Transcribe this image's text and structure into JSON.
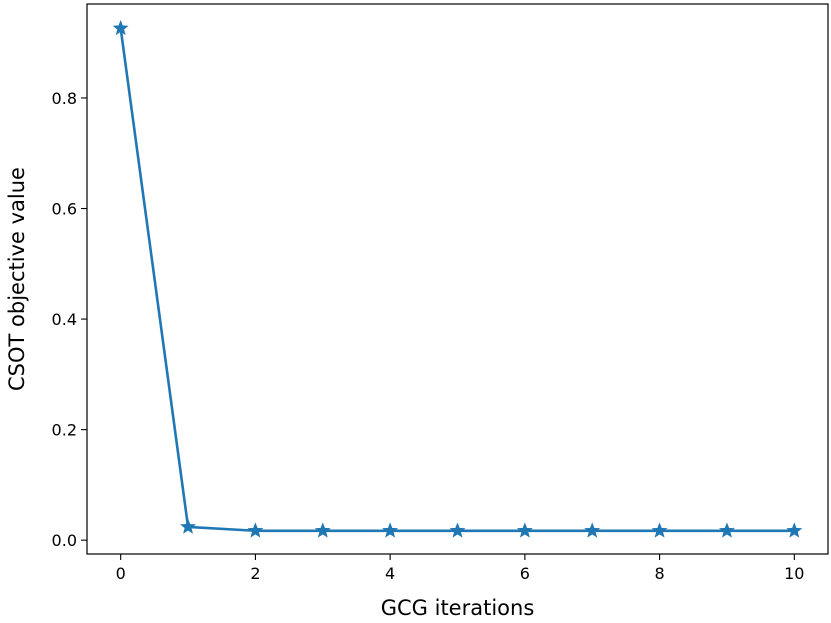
{
  "chart_data": {
    "type": "line",
    "title": "",
    "xlabel": "GCG iterations",
    "ylabel": "CSOT objective value",
    "xlim": [
      -0.5,
      10.5
    ],
    "ylim": [
      -0.025,
      0.97
    ],
    "xticks": [
      0,
      2,
      4,
      6,
      8,
      10
    ],
    "yticks": [
      0.0,
      0.2,
      0.4,
      0.6,
      0.8
    ],
    "xtick_labels": [
      "0",
      "2",
      "4",
      "6",
      "8",
      "10"
    ],
    "ytick_labels": [
      "0.0",
      "0.2",
      "0.4",
      "0.6",
      "0.8"
    ],
    "grid": false,
    "legend": "none",
    "series": [
      {
        "color": "#1f77b4",
        "marker": "star",
        "x": [
          0,
          1,
          2,
          3,
          4,
          5,
          6,
          7,
          8,
          9,
          10
        ],
        "y": [
          0.926,
          0.024,
          0.017,
          0.017,
          0.017,
          0.017,
          0.017,
          0.017,
          0.017,
          0.017,
          0.017
        ]
      }
    ]
  }
}
